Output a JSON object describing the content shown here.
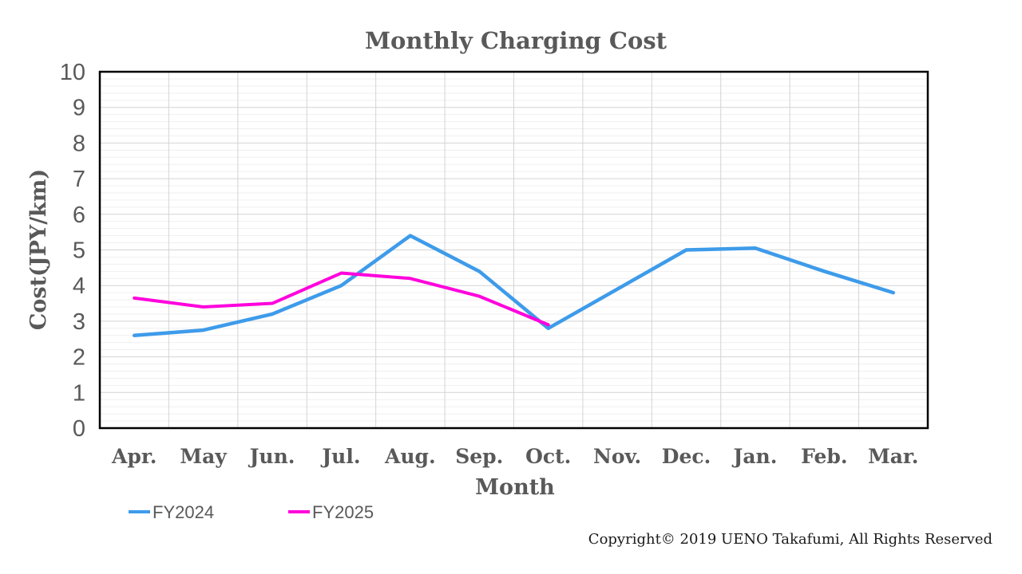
{
  "title": "Monthly Charging Cost",
  "copyright": "Copyright© 2019 UENO Takafumi, All Rights Reserved",
  "chart_data": {
    "type": "line",
    "title": "Monthly Charging Cost",
    "xlabel": "Month",
    "ylabel": "Cost(JPY/km)",
    "categories": [
      "Apr.",
      "May",
      "Jun.",
      "Jul.",
      "Aug.",
      "Sep.",
      "Oct.",
      "Nov.",
      "Dec.",
      "Jan.",
      "Feb.",
      "Mar."
    ],
    "series": [
      {
        "name": "FY2024",
        "color": "#3E9BEA",
        "values": [
          2.6,
          2.75,
          3.2,
          4.0,
          5.4,
          4.4,
          2.8,
          3.9,
          5.0,
          5.05,
          4.4,
          3.8
        ]
      },
      {
        "name": "FY2025",
        "color": "#FF00DD",
        "values": [
          3.65,
          3.4,
          3.5,
          4.35,
          4.2,
          3.7,
          2.9
        ]
      }
    ],
    "ylim": [
      0,
      10
    ],
    "y_major_step": 1,
    "y_minor_step": 0.2,
    "grid": true,
    "legend_position": "bottom-left",
    "colors": {
      "axis_text": "#595959",
      "major_grid": "#D4D4D4",
      "minor_grid": "#EFEFEF",
      "vertical_grid": "#D4D4D4",
      "plot_border": "#000000",
      "plot_background": "#FFFFFF"
    }
  }
}
